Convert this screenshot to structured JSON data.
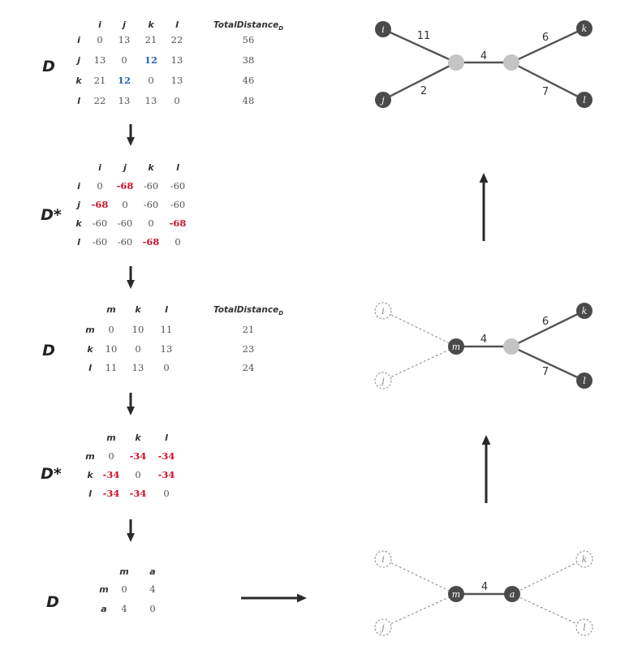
{
  "matrices": [
    {
      "label": "D",
      "cols": [
        "i",
        "j",
        "k",
        "l"
      ],
      "rows": [
        {
          "name": "i",
          "cells": [
            {
              "v": "0"
            },
            {
              "v": "13"
            },
            {
              "v": "21"
            },
            {
              "v": "22"
            }
          ],
          "total": "56"
        },
        {
          "name": "j",
          "cells": [
            {
              "v": "13"
            },
            {
              "v": "0"
            },
            {
              "v": "12",
              "c": "blue"
            },
            {
              "v": "13"
            }
          ],
          "total": "38"
        },
        {
          "name": "k",
          "cells": [
            {
              "v": "21"
            },
            {
              "v": "12",
              "c": "blue"
            },
            {
              "v": "0"
            },
            {
              "v": "13"
            }
          ],
          "total": "46"
        },
        {
          "name": "l",
          "cells": [
            {
              "v": "22"
            },
            {
              "v": "13"
            },
            {
              "v": "13"
            },
            {
              "v": "0"
            }
          ],
          "total": "48"
        }
      ],
      "total_header": "TotalDistance",
      "total_sub": "D"
    },
    {
      "label": "D*",
      "cols": [
        "i",
        "j",
        "k",
        "l"
      ],
      "rows": [
        {
          "name": "i",
          "cells": [
            {
              "v": "0"
            },
            {
              "v": "-68",
              "c": "red"
            },
            {
              "v": "-60"
            },
            {
              "v": "-60"
            }
          ]
        },
        {
          "name": "j",
          "cells": [
            {
              "v": "-68",
              "c": "red"
            },
            {
              "v": "0"
            },
            {
              "v": "-60"
            },
            {
              "v": "-60"
            }
          ]
        },
        {
          "name": "k",
          "cells": [
            {
              "v": "-60"
            },
            {
              "v": "-60"
            },
            {
              "v": "0"
            },
            {
              "v": "-68",
              "c": "red"
            }
          ]
        },
        {
          "name": "l",
          "cells": [
            {
              "v": "-60"
            },
            {
              "v": "-60"
            },
            {
              "v": "-68",
              "c": "red"
            },
            {
              "v": "0"
            }
          ]
        }
      ]
    },
    {
      "label": "D",
      "cols": [
        "m",
        "k",
        "l"
      ],
      "rows": [
        {
          "name": "m",
          "cells": [
            {
              "v": "0"
            },
            {
              "v": "10"
            },
            {
              "v": "11"
            }
          ],
          "total": "21"
        },
        {
          "name": "k",
          "cells": [
            {
              "v": "10"
            },
            {
              "v": "0"
            },
            {
              "v": "13"
            }
          ],
          "total": "23"
        },
        {
          "name": "l",
          "cells": [
            {
              "v": "11"
            },
            {
              "v": "13"
            },
            {
              "v": "0"
            }
          ],
          "total": "24"
        }
      ],
      "total_header": "TotalDistance",
      "total_sub": "D"
    },
    {
      "label": "D*",
      "cols": [
        "m",
        "k",
        "l"
      ],
      "rows": [
        {
          "name": "m",
          "cells": [
            {
              "v": "0"
            },
            {
              "v": "-34",
              "c": "red"
            },
            {
              "v": "-34",
              "c": "red"
            }
          ]
        },
        {
          "name": "k",
          "cells": [
            {
              "v": "-34",
              "c": "red"
            },
            {
              "v": "0"
            },
            {
              "v": "-34",
              "c": "red"
            }
          ]
        },
        {
          "name": "l",
          "cells": [
            {
              "v": "-34",
              "c": "red"
            },
            {
              "v": "-34",
              "c": "red"
            },
            {
              "v": "0"
            }
          ]
        }
      ]
    },
    {
      "label": "D",
      "cols": [
        "m",
        "a"
      ],
      "rows": [
        {
          "name": "m",
          "cells": [
            {
              "v": "0"
            },
            {
              "v": "4"
            }
          ]
        },
        {
          "name": "a",
          "cells": [
            {
              "v": "4"
            },
            {
              "v": "0"
            }
          ]
        }
      ]
    }
  ],
  "trees": [
    {
      "nodes": [
        {
          "id": "i",
          "label": "i",
          "style": "dark"
        },
        {
          "id": "j",
          "label": "j",
          "style": "dark"
        },
        {
          "id": "k",
          "label": "k",
          "style": "dark"
        },
        {
          "id": "l",
          "label": "l",
          "style": "dark"
        },
        {
          "id": "u",
          "label": "",
          "style": "gray"
        },
        {
          "id": "v",
          "label": "",
          "style": "gray"
        }
      ],
      "edges": [
        {
          "from": "i",
          "to": "u",
          "weight": "11",
          "style": "solid"
        },
        {
          "from": "j",
          "to": "u",
          "weight": "2",
          "style": "solid"
        },
        {
          "from": "u",
          "to": "v",
          "weight": "4",
          "style": "solid"
        },
        {
          "from": "v",
          "to": "k",
          "weight": "6",
          "style": "solid"
        },
        {
          "from": "v",
          "to": "l",
          "weight": "7",
          "style": "solid"
        }
      ]
    },
    {
      "nodes": [
        {
          "id": "i",
          "label": "i",
          "style": "dashed"
        },
        {
          "id": "j",
          "label": "j",
          "style": "dashed"
        },
        {
          "id": "k",
          "label": "k",
          "style": "dark"
        },
        {
          "id": "l",
          "label": "l",
          "style": "dark"
        },
        {
          "id": "m",
          "label": "m",
          "style": "dark"
        },
        {
          "id": "v",
          "label": "",
          "style": "gray"
        }
      ],
      "edges": [
        {
          "from": "i",
          "to": "m",
          "weight": "",
          "style": "dashed"
        },
        {
          "from": "j",
          "to": "m",
          "weight": "",
          "style": "dashed"
        },
        {
          "from": "m",
          "to": "v",
          "weight": "4",
          "style": "solid"
        },
        {
          "from": "v",
          "to": "k",
          "weight": "6",
          "style": "solid"
        },
        {
          "from": "v",
          "to": "l",
          "weight": "7",
          "style": "solid"
        }
      ]
    },
    {
      "nodes": [
        {
          "id": "i",
          "label": "i",
          "style": "dashed"
        },
        {
          "id": "j",
          "label": "j",
          "style": "dashed"
        },
        {
          "id": "k",
          "label": "k",
          "style": "dashed"
        },
        {
          "id": "l",
          "label": "l",
          "style": "dashed"
        },
        {
          "id": "m",
          "label": "m",
          "style": "dark"
        },
        {
          "id": "a",
          "label": "a",
          "style": "dark"
        }
      ],
      "edges": [
        {
          "from": "i",
          "to": "m",
          "weight": "",
          "style": "dashed"
        },
        {
          "from": "j",
          "to": "m",
          "weight": "",
          "style": "dashed"
        },
        {
          "from": "m",
          "to": "a",
          "weight": "4",
          "style": "solid"
        },
        {
          "from": "a",
          "to": "k",
          "weight": "",
          "style": "dashed"
        },
        {
          "from": "a",
          "to": "l",
          "weight": "",
          "style": "dashed"
        }
      ]
    }
  ],
  "colors": {
    "red": "#d0102e",
    "blue": "#2a64b4",
    "dark_node": "#4a4a4a",
    "gray_node": "#c4c4c4",
    "edge": "#555555",
    "dashed": "#888888"
  }
}
